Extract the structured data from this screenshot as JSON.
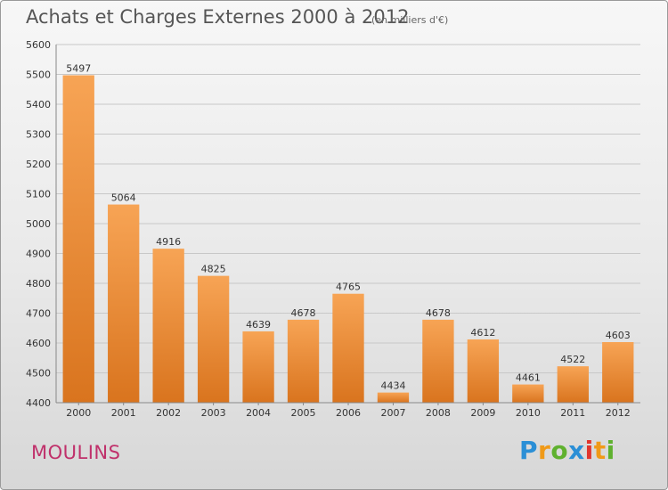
{
  "title": "Achats et Charges Externes 2000 à 2012",
  "unit": "(en milliers d'€)",
  "commune": "MOULINS",
  "logo": {
    "parts": [
      "P",
      "r",
      "o",
      "x",
      "i",
      "t",
      "i"
    ]
  },
  "colors": {
    "bar_light": "#f7a455",
    "bar_dark": "#d9741e",
    "commune": "#c0316b"
  },
  "chart_data": {
    "type": "bar",
    "categories": [
      "2000",
      "2001",
      "2002",
      "2003",
      "2004",
      "2005",
      "2006",
      "2007",
      "2008",
      "2009",
      "2010",
      "2011",
      "2012"
    ],
    "values": [
      5497,
      5064,
      4916,
      4825,
      4639,
      4678,
      4765,
      4434,
      4678,
      4612,
      4461,
      4522,
      4603
    ],
    "ylim": [
      4400,
      5600
    ],
    "yticks": [
      4400,
      4500,
      4600,
      4700,
      4800,
      4900,
      5000,
      5100,
      5200,
      5300,
      5400,
      5500,
      5600
    ],
    "grid": true
  }
}
